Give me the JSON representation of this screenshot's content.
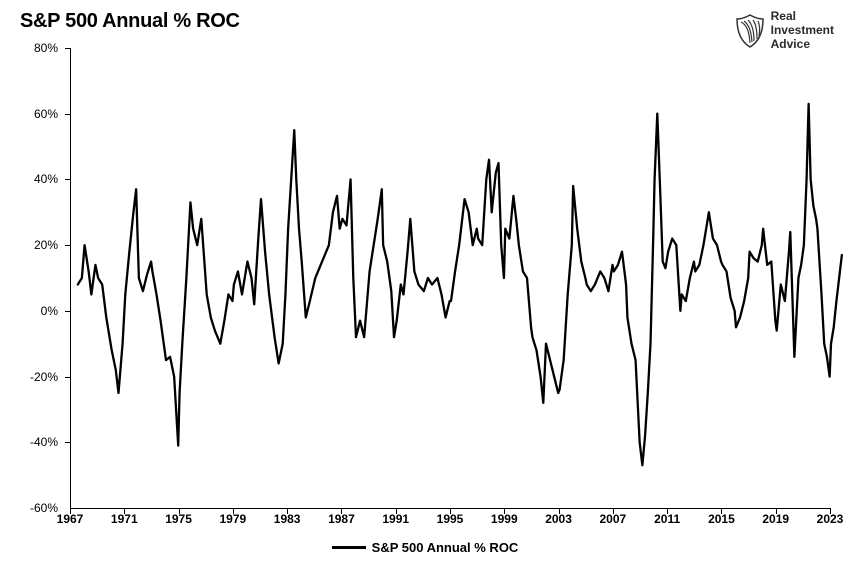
{
  "chart": {
    "type": "line",
    "title": "S&P 500 Annual % ROC",
    "title_fontsize": 20,
    "title_fontweight": "900",
    "background_color": "#ffffff",
    "axis_color": "#000000",
    "line_color": "#000000",
    "line_width": 2.3,
    "xlim": [
      1967,
      2023
    ],
    "ylim": [
      -60,
      80
    ],
    "yticks": [
      -60,
      -40,
      -20,
      0,
      20,
      40,
      60,
      80
    ],
    "ytick_format": "percent",
    "xticks": [
      1967,
      1971,
      1975,
      1979,
      1983,
      1987,
      1991,
      1995,
      1999,
      2003,
      2007,
      2011,
      2015,
      2019,
      2023
    ],
    "xtick_fontweight": "700",
    "tick_fontsize": 12,
    "legend": {
      "label": "S&P 500 Annual % ROC",
      "position": "bottom-center",
      "fontsize": 13,
      "fontweight": "700"
    },
    "series": [
      {
        "name": "S&P 500 Annual % ROC",
        "data": [
          [
            1967.5,
            8
          ],
          [
            1967.8,
            10
          ],
          [
            1968.0,
            20
          ],
          [
            1968.3,
            12
          ],
          [
            1968.5,
            5
          ],
          [
            1968.8,
            14
          ],
          [
            1969.0,
            10
          ],
          [
            1969.3,
            8
          ],
          [
            1969.6,
            -2
          ],
          [
            1970.0,
            -12
          ],
          [
            1970.3,
            -18
          ],
          [
            1970.5,
            -25
          ],
          [
            1970.8,
            -10
          ],
          [
            1971.0,
            5
          ],
          [
            1971.3,
            18
          ],
          [
            1971.6,
            30
          ],
          [
            1971.8,
            37
          ],
          [
            1972.0,
            10
          ],
          [
            1972.3,
            6
          ],
          [
            1972.6,
            11
          ],
          [
            1972.9,
            15
          ],
          [
            1973.0,
            12
          ],
          [
            1973.3,
            5
          ],
          [
            1973.6,
            -3
          ],
          [
            1974.0,
            -15
          ],
          [
            1974.3,
            -14
          ],
          [
            1974.6,
            -20
          ],
          [
            1974.9,
            -41
          ],
          [
            1975.0,
            -25
          ],
          [
            1975.2,
            -10
          ],
          [
            1975.5,
            10
          ],
          [
            1975.8,
            33
          ],
          [
            1976.0,
            25
          ],
          [
            1976.3,
            20
          ],
          [
            1976.6,
            28
          ],
          [
            1977.0,
            5
          ],
          [
            1977.3,
            -2
          ],
          [
            1977.6,
            -6
          ],
          [
            1978.0,
            -10
          ],
          [
            1978.3,
            -3
          ],
          [
            1978.6,
            5
          ],
          [
            1978.9,
            3
          ],
          [
            1979.0,
            8
          ],
          [
            1979.3,
            12
          ],
          [
            1979.6,
            5
          ],
          [
            1980.0,
            15
          ],
          [
            1980.3,
            10
          ],
          [
            1980.5,
            2
          ],
          [
            1980.8,
            22
          ],
          [
            1981.0,
            34
          ],
          [
            1981.3,
            18
          ],
          [
            1981.6,
            5
          ],
          [
            1982.0,
            -8
          ],
          [
            1982.3,
            -16
          ],
          [
            1982.6,
            -10
          ],
          [
            1982.8,
            5
          ],
          [
            1983.0,
            25
          ],
          [
            1983.3,
            45
          ],
          [
            1983.45,
            55
          ],
          [
            1983.6,
            40
          ],
          [
            1983.8,
            25
          ],
          [
            1984.0,
            15
          ],
          [
            1984.3,
            -2
          ],
          [
            1984.6,
            3
          ],
          [
            1985.0,
            10
          ],
          [
            1985.3,
            13
          ],
          [
            1985.6,
            16
          ],
          [
            1986.0,
            20
          ],
          [
            1986.3,
            30
          ],
          [
            1986.6,
            35
          ],
          [
            1986.8,
            25
          ],
          [
            1987.0,
            28
          ],
          [
            1987.3,
            26
          ],
          [
            1987.6,
            40
          ],
          [
            1987.8,
            10
          ],
          [
            1988.0,
            -8
          ],
          [
            1988.3,
            -3
          ],
          [
            1988.6,
            -8
          ],
          [
            1989.0,
            12
          ],
          [
            1989.3,
            20
          ],
          [
            1989.6,
            28
          ],
          [
            1989.9,
            37
          ],
          [
            1990.0,
            20
          ],
          [
            1990.3,
            15
          ],
          [
            1990.6,
            6
          ],
          [
            1990.8,
            -8
          ],
          [
            1991.0,
            -3
          ],
          [
            1991.3,
            8
          ],
          [
            1991.5,
            5
          ],
          [
            1991.8,
            18
          ],
          [
            1992.0,
            28
          ],
          [
            1992.3,
            12
          ],
          [
            1992.6,
            8
          ],
          [
            1993.0,
            6
          ],
          [
            1993.3,
            10
          ],
          [
            1993.6,
            8
          ],
          [
            1994.0,
            10
          ],
          [
            1994.3,
            5
          ],
          [
            1994.6,
            -2
          ],
          [
            1994.9,
            3
          ],
          [
            1995.0,
            3
          ],
          [
            1995.3,
            12
          ],
          [
            1995.6,
            20
          ],
          [
            1996.0,
            34
          ],
          [
            1996.3,
            30
          ],
          [
            1996.6,
            20
          ],
          [
            1996.9,
            25
          ],
          [
            1997.0,
            22
          ],
          [
            1997.3,
            20
          ],
          [
            1997.6,
            40
          ],
          [
            1997.8,
            46
          ],
          [
            1998.0,
            30
          ],
          [
            1998.3,
            42
          ],
          [
            1998.5,
            45
          ],
          [
            1998.7,
            20
          ],
          [
            1998.9,
            10
          ],
          [
            1999.0,
            25
          ],
          [
            1999.3,
            22
          ],
          [
            1999.6,
            35
          ],
          [
            1999.8,
            28
          ],
          [
            2000.0,
            20
          ],
          [
            2000.3,
            12
          ],
          [
            2000.6,
            10
          ],
          [
            2000.9,
            -5
          ],
          [
            2001.0,
            -8
          ],
          [
            2001.3,
            -12
          ],
          [
            2001.6,
            -20
          ],
          [
            2001.8,
            -28
          ],
          [
            2002.0,
            -10
          ],
          [
            2002.3,
            -15
          ],
          [
            2002.6,
            -20
          ],
          [
            2002.9,
            -25
          ],
          [
            2003.0,
            -24
          ],
          [
            2003.3,
            -15
          ],
          [
            2003.6,
            5
          ],
          [
            2003.9,
            20
          ],
          [
            2004.0,
            38
          ],
          [
            2004.3,
            25
          ],
          [
            2004.6,
            15
          ],
          [
            2004.9,
            10
          ],
          [
            2005.0,
            8
          ],
          [
            2005.3,
            6
          ],
          [
            2005.6,
            8
          ],
          [
            2006.0,
            12
          ],
          [
            2006.3,
            10
          ],
          [
            2006.6,
            6
          ],
          [
            2006.9,
            14
          ],
          [
            2007.0,
            12
          ],
          [
            2007.3,
            14
          ],
          [
            2007.6,
            18
          ],
          [
            2007.9,
            8
          ],
          [
            2008.0,
            -2
          ],
          [
            2008.3,
            -10
          ],
          [
            2008.6,
            -15
          ],
          [
            2008.9,
            -40
          ],
          [
            2009.1,
            -47
          ],
          [
            2009.3,
            -38
          ],
          [
            2009.5,
            -25
          ],
          [
            2009.7,
            -10
          ],
          [
            2009.9,
            22
          ],
          [
            2010.0,
            40
          ],
          [
            2010.2,
            60
          ],
          [
            2010.4,
            38
          ],
          [
            2010.6,
            15
          ],
          [
            2010.8,
            13
          ],
          [
            2011.0,
            18
          ],
          [
            2011.3,
            22
          ],
          [
            2011.6,
            20
          ],
          [
            2011.9,
            0
          ],
          [
            2012.0,
            5
          ],
          [
            2012.3,
            3
          ],
          [
            2012.6,
            10
          ],
          [
            2012.9,
            15
          ],
          [
            2013.0,
            12
          ],
          [
            2013.3,
            14
          ],
          [
            2013.6,
            20
          ],
          [
            2014.0,
            30
          ],
          [
            2014.3,
            22
          ],
          [
            2014.6,
            20
          ],
          [
            2014.9,
            15
          ],
          [
            2015.0,
            14
          ],
          [
            2015.3,
            12
          ],
          [
            2015.6,
            4
          ],
          [
            2015.9,
            0
          ],
          [
            2016.0,
            -5
          ],
          [
            2016.3,
            -2
          ],
          [
            2016.6,
            3
          ],
          [
            2016.9,
            10
          ],
          [
            2017.0,
            18
          ],
          [
            2017.3,
            16
          ],
          [
            2017.6,
            15
          ],
          [
            2017.9,
            20
          ],
          [
            2018.0,
            25
          ],
          [
            2018.3,
            14
          ],
          [
            2018.6,
            15
          ],
          [
            2018.9,
            -3
          ],
          [
            2019.0,
            -6
          ],
          [
            2019.3,
            8
          ],
          [
            2019.6,
            3
          ],
          [
            2019.9,
            18
          ],
          [
            2020.0,
            24
          ],
          [
            2020.3,
            -14
          ],
          [
            2020.45,
            -2
          ],
          [
            2020.6,
            10
          ],
          [
            2020.8,
            14
          ],
          [
            2021.0,
            20
          ],
          [
            2021.2,
            40
          ],
          [
            2021.35,
            63
          ],
          [
            2021.5,
            40
          ],
          [
            2021.7,
            32
          ],
          [
            2021.9,
            28
          ],
          [
            2022.0,
            25
          ],
          [
            2022.3,
            5
          ],
          [
            2022.5,
            -10
          ],
          [
            2022.7,
            -14
          ],
          [
            2022.9,
            -20
          ],
          [
            2023.0,
            -10
          ],
          [
            2023.2,
            -5
          ],
          [
            2023.4,
            3
          ],
          [
            2023.6,
            10
          ],
          [
            2023.8,
            17
          ]
        ]
      }
    ]
  },
  "branding": {
    "company_line1": "Real",
    "company_line2": "Investment",
    "company_line3": "Advice",
    "icon": "feather-shield"
  }
}
